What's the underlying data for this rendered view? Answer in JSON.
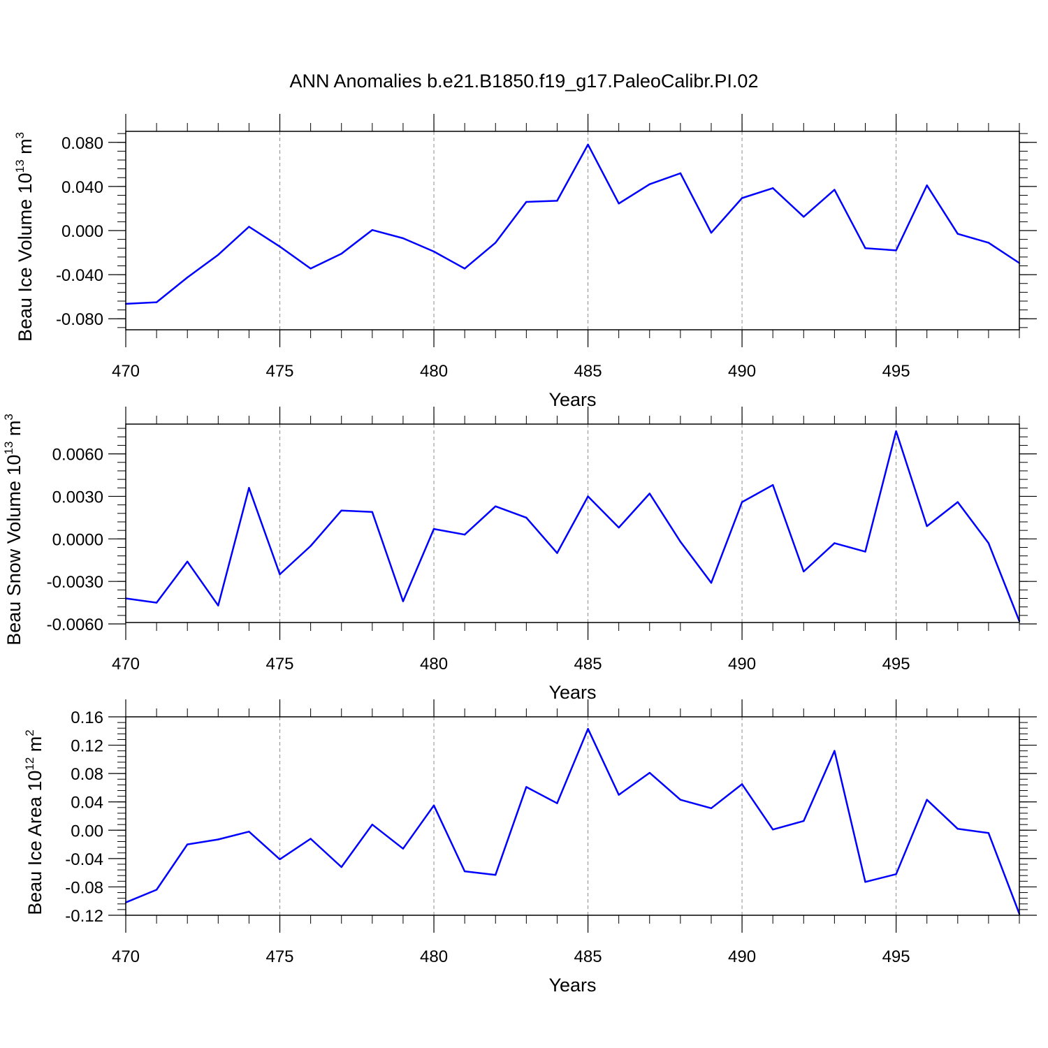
{
  "title": "ANN Anomalies b.e21.B1850.f19_g17.PaleoCalibr.PI.02",
  "colors": {
    "line": "#0000ff",
    "axis": "#000000",
    "grid": "#8c8c8c"
  },
  "chart_data": [
    {
      "type": "line",
      "ylabel": {
        "main": "Beau Ice Volume 10",
        "exp": "13",
        "unit": " m",
        "unit_exp": "3"
      },
      "xlabel": "Years",
      "xlim": [
        470,
        499
      ],
      "ylim": [
        -0.09,
        0.09
      ],
      "xticks": [
        "470",
        "475",
        "480",
        "485",
        "490",
        "495"
      ],
      "xtick_values": [
        470,
        475,
        480,
        485,
        490,
        495
      ],
      "yticks": [
        "-0.080",
        "-0.040",
        "0.000",
        "0.040",
        "0.080"
      ],
      "ytick_values": [
        -0.08,
        -0.04,
        0.0,
        0.04,
        0.08
      ],
      "grid": "vertical dashed at major x ticks",
      "series": [
        {
          "x": [
            470,
            471,
            472,
            473,
            474,
            475,
            476,
            477,
            478,
            479,
            480,
            481,
            482,
            483,
            484,
            485,
            486,
            487,
            488,
            489,
            490,
            491,
            492,
            493,
            494,
            495,
            496,
            497,
            498,
            499
          ],
          "values": [
            -0.0665,
            -0.065,
            -0.0425,
            -0.022,
            0.0035,
            -0.0145,
            -0.0345,
            -0.021,
            0.0005,
            -0.007,
            -0.019,
            -0.0345,
            -0.011,
            0.026,
            0.027,
            0.078,
            0.0245,
            0.042,
            0.052,
            -0.002,
            0.0295,
            0.0385,
            0.0125,
            0.037,
            -0.016,
            -0.018,
            0.041,
            -0.003,
            -0.011,
            -0.0295
          ]
        }
      ]
    },
    {
      "type": "line",
      "ylabel": {
        "main": "Beau Snow Volume 10",
        "exp": "13",
        "unit": " m",
        "unit_exp": "3"
      },
      "xlabel": "Years",
      "xlim": [
        470,
        499
      ],
      "ylim": [
        -0.0059,
        0.0081
      ],
      "xticks": [
        "470",
        "475",
        "480",
        "485",
        "490",
        "495"
      ],
      "xtick_values": [
        470,
        475,
        480,
        485,
        490,
        495
      ],
      "yticks": [
        "-0.0060",
        "-0.0030",
        "0.0000",
        "0.0030",
        "0.0060"
      ],
      "ytick_values": [
        -0.006,
        -0.003,
        0.0,
        0.003,
        0.006
      ],
      "grid": "vertical dashed at major x ticks",
      "series": [
        {
          "x": [
            470,
            471,
            472,
            473,
            474,
            475,
            476,
            477,
            478,
            479,
            480,
            481,
            482,
            483,
            484,
            485,
            486,
            487,
            488,
            489,
            490,
            491,
            492,
            493,
            494,
            495,
            496,
            497,
            498,
            499
          ],
          "values": [
            -0.0042,
            -0.0045,
            -0.0016,
            -0.0047,
            0.0036,
            -0.0025,
            -0.0005,
            0.002,
            0.0019,
            -0.0044,
            0.0007,
            0.0003,
            0.0023,
            0.0015,
            -0.001,
            0.003,
            0.0008,
            0.0032,
            -0.0002,
            -0.0031,
            0.0026,
            0.0038,
            -0.0023,
            -0.0003,
            -0.0009,
            0.0076,
            0.0009,
            0.0026,
            -0.0003,
            -0.0058
          ]
        }
      ]
    },
    {
      "type": "line",
      "ylabel": {
        "main": "Beau Ice Area 10",
        "exp": "12",
        "unit": " m",
        "unit_exp": "2"
      },
      "xlabel": "Years",
      "xlim": [
        470,
        499
      ],
      "ylim": [
        -0.12,
        0.16
      ],
      "xticks": [
        "470",
        "475",
        "480",
        "485",
        "490",
        "495"
      ],
      "xtick_values": [
        470,
        475,
        480,
        485,
        490,
        495
      ],
      "yticks": [
        "-0.12",
        "-0.08",
        "-0.04",
        "0.00",
        "0.04",
        "0.08",
        "0.12",
        "0.16"
      ],
      "ytick_values": [
        -0.12,
        -0.08,
        -0.04,
        0.0,
        0.04,
        0.08,
        0.12,
        0.16
      ],
      "grid": "vertical dashed at major x ticks",
      "series": [
        {
          "x": [
            470,
            471,
            472,
            473,
            474,
            475,
            476,
            477,
            478,
            479,
            480,
            481,
            482,
            483,
            484,
            485,
            486,
            487,
            488,
            489,
            490,
            491,
            492,
            493,
            494,
            495,
            496,
            497,
            498,
            499
          ],
          "values": [
            -0.102,
            -0.084,
            -0.02,
            -0.013,
            -0.002,
            -0.041,
            -0.012,
            -0.052,
            0.008,
            -0.026,
            0.035,
            -0.058,
            -0.063,
            0.061,
            0.038,
            0.143,
            0.05,
            0.081,
            0.043,
            0.031,
            0.065,
            0.001,
            0.013,
            0.112,
            -0.073,
            -0.062,
            0.043,
            0.002,
            -0.004,
            -0.118
          ]
        }
      ]
    }
  ]
}
